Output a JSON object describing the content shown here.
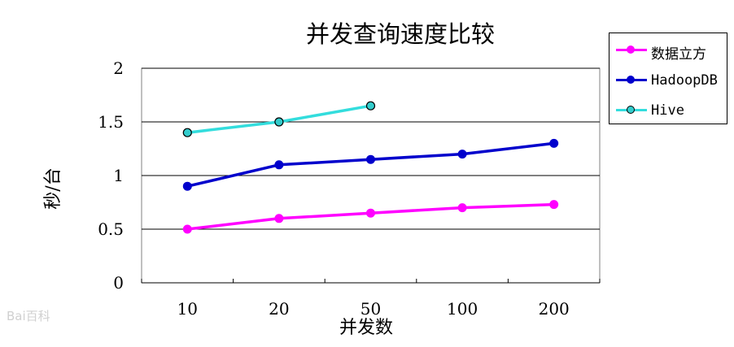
{
  "chart_data": {
    "type": "line",
    "title": "并发查询速度比较",
    "xlabel": "并发数",
    "ylabel": "秒/台",
    "categories": [
      "10",
      "20",
      "50",
      "100",
      "200"
    ],
    "ylim": [
      0,
      2
    ],
    "yticks": [
      "0",
      "0.5",
      "1",
      "1.5",
      "2"
    ],
    "grid": "horizontal",
    "legend_position": "top-right",
    "series": [
      {
        "name": "数据立方",
        "color": "#ff00ff",
        "marker_fill": "#ff00ff",
        "values": [
          0.5,
          0.6,
          0.65,
          0.7,
          0.73
        ]
      },
      {
        "name": "HadoopDB",
        "color": "#0000cc",
        "marker_fill": "#0000cc",
        "values": [
          0.9,
          1.1,
          1.15,
          1.2,
          1.3
        ]
      },
      {
        "name": "Hive",
        "color": "#33dddd",
        "marker_fill": "#33cccc",
        "values": [
          1.4,
          1.5,
          1.65,
          null,
          null
        ]
      }
    ]
  },
  "watermark": "Bai百科"
}
